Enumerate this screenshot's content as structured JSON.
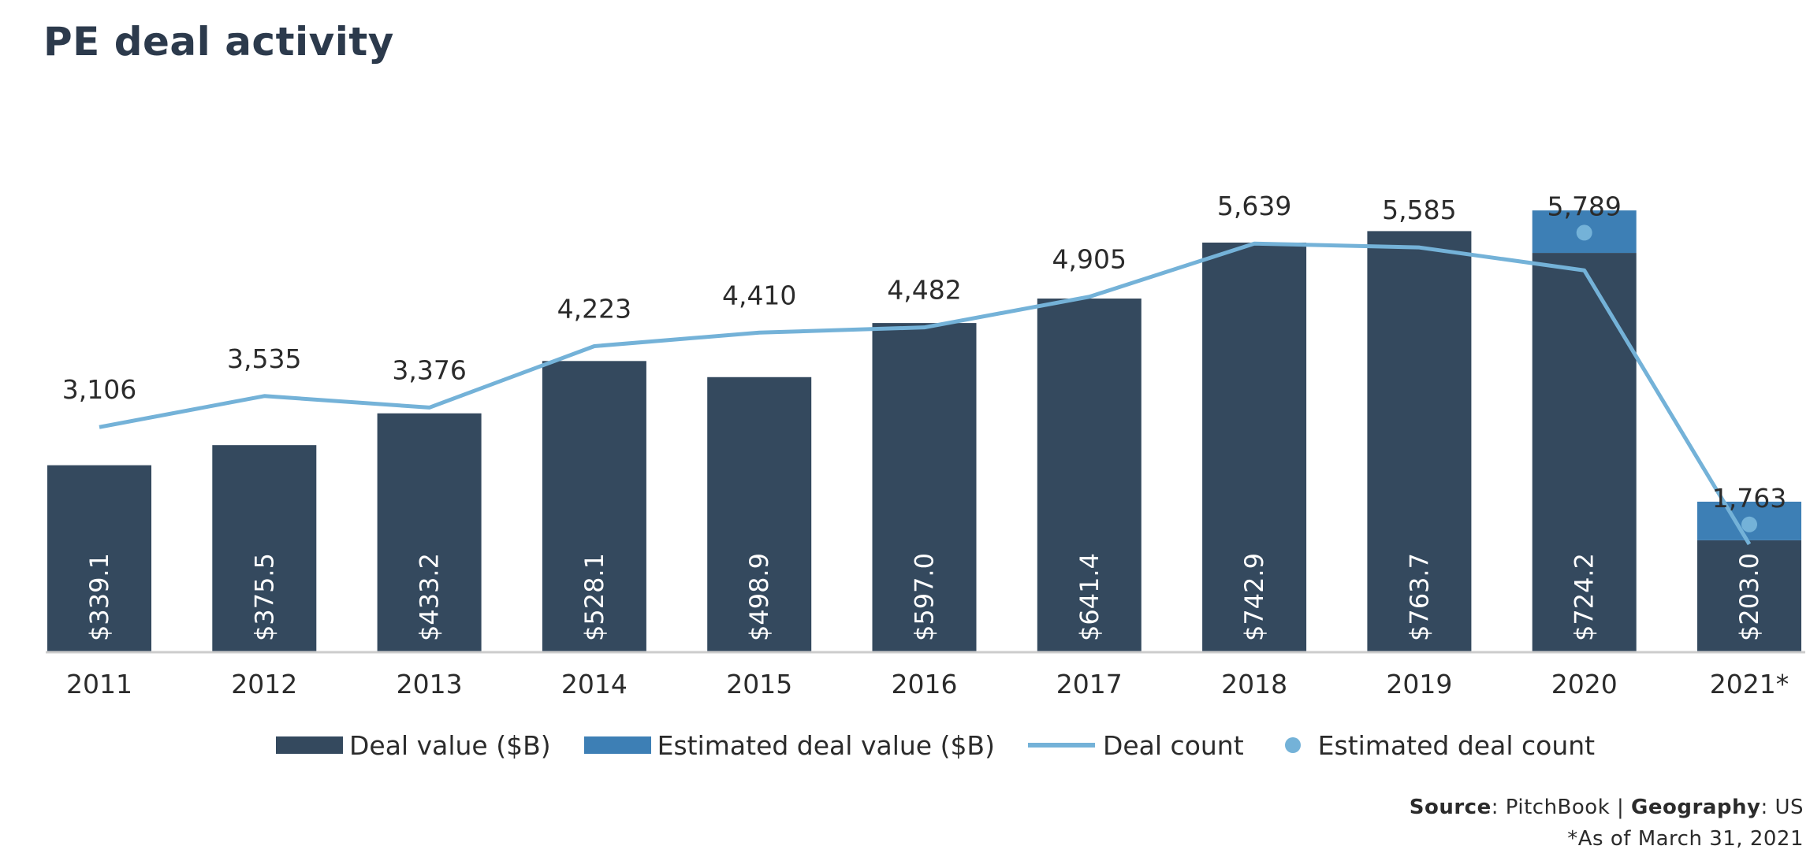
{
  "title": "PE deal activity",
  "chart_data": {
    "type": "bar",
    "categories": [
      "2011",
      "2012",
      "2013",
      "2014",
      "2015",
      "2016",
      "2017",
      "2018",
      "2019",
      "2020",
      "2021*"
    ],
    "series": [
      {
        "name": "Deal value ($B)",
        "type": "bar",
        "color": "#34495e",
        "values": [
          339.1,
          375.5,
          433.2,
          528.1,
          498.9,
          597.0,
          641.4,
          742.9,
          763.7,
          724.2,
          203.0
        ],
        "labels": [
          "$339.1",
          "$375.5",
          "$433.2",
          "$528.1",
          "$498.9",
          "$597.0",
          "$641.4",
          "$742.9",
          "$763.7",
          "$724.2",
          "$203.0"
        ]
      },
      {
        "name": "Estimated deal value ($B)",
        "type": "bar-stacked",
        "color": "#3d7fb5",
        "values": [
          null,
          null,
          null,
          null,
          null,
          null,
          null,
          null,
          null,
          77,
          70
        ]
      },
      {
        "name": "Deal count",
        "type": "line",
        "color": "#74b2d8",
        "values": [
          3106,
          3535,
          3376,
          4223,
          4410,
          4482,
          4905,
          5639,
          5585,
          5269,
          1491
        ]
      },
      {
        "name": "Estimated deal count",
        "type": "scatter",
        "color": "#74b2d8",
        "values": [
          null,
          null,
          null,
          null,
          null,
          null,
          null,
          null,
          null,
          5789,
          1763
        ]
      }
    ],
    "count_labels": [
      "3,106",
      "3,535",
      "3,376",
      "4,223",
      "4,410",
      "4,482",
      "4,905",
      "5,639",
      "5,585",
      "5,789",
      "1,763"
    ],
    "value_axis_max": 900,
    "count_axis_range": [
      0,
      7500
    ],
    "grid": false
  },
  "legend": {
    "deal_value": "Deal value ($B)",
    "estimated_deal_value": "Estimated deal value ($B)",
    "deal_count": "Deal count",
    "estimated_deal_count": "Estimated deal count"
  },
  "footer": {
    "source_label": "Source",
    "source_value": ": PitchBook | ",
    "geo_label": "Geography",
    "geo_value": ": US",
    "note": "*As of March 31, 2021"
  }
}
